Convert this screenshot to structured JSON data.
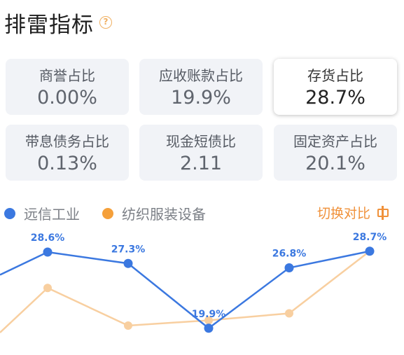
{
  "header": {
    "title": "排雷指标",
    "help_icon": "question-circle-icon",
    "help_glyph": "?"
  },
  "cards": [
    {
      "label": "商誉占比",
      "value": "0.00%",
      "active": false
    },
    {
      "label": "应收账款占比",
      "value": "19.9%",
      "active": false
    },
    {
      "label": "存货占比",
      "value": "28.7%",
      "active": true
    },
    {
      "label": "带息债务占比",
      "value": "0.13%",
      "active": false
    },
    {
      "label": "现金短债比",
      "value": "2.11",
      "active": false
    },
    {
      "label": "固定资产占比",
      "value": "20.1%",
      "active": false
    }
  ],
  "legend": {
    "series_a": {
      "name": "远信工业",
      "color": "#3b78e0"
    },
    "series_b": {
      "name": "纺织服装设备",
      "color": "#f5a03a"
    },
    "switch_label": "切换对比",
    "switch_icon": "toggle-compare-icon"
  },
  "chart_data": {
    "type": "line",
    "series": [
      {
        "name": "远信工业",
        "color": "#3b78e0",
        "values": [
          null,
          28.6,
          27.3,
          19.9,
          26.8,
          28.7
        ],
        "labels": [
          "",
          "28.6%",
          "27.3%",
          "19.9%",
          "26.8%",
          "28.7%"
        ]
      },
      {
        "name": "纺织服装设备",
        "color": "#f8cfa0",
        "values": [
          null,
          24.5,
          20.2,
          20.8,
          21.6,
          28.7
        ]
      }
    ],
    "ylim": [
      17,
      31
    ]
  }
}
